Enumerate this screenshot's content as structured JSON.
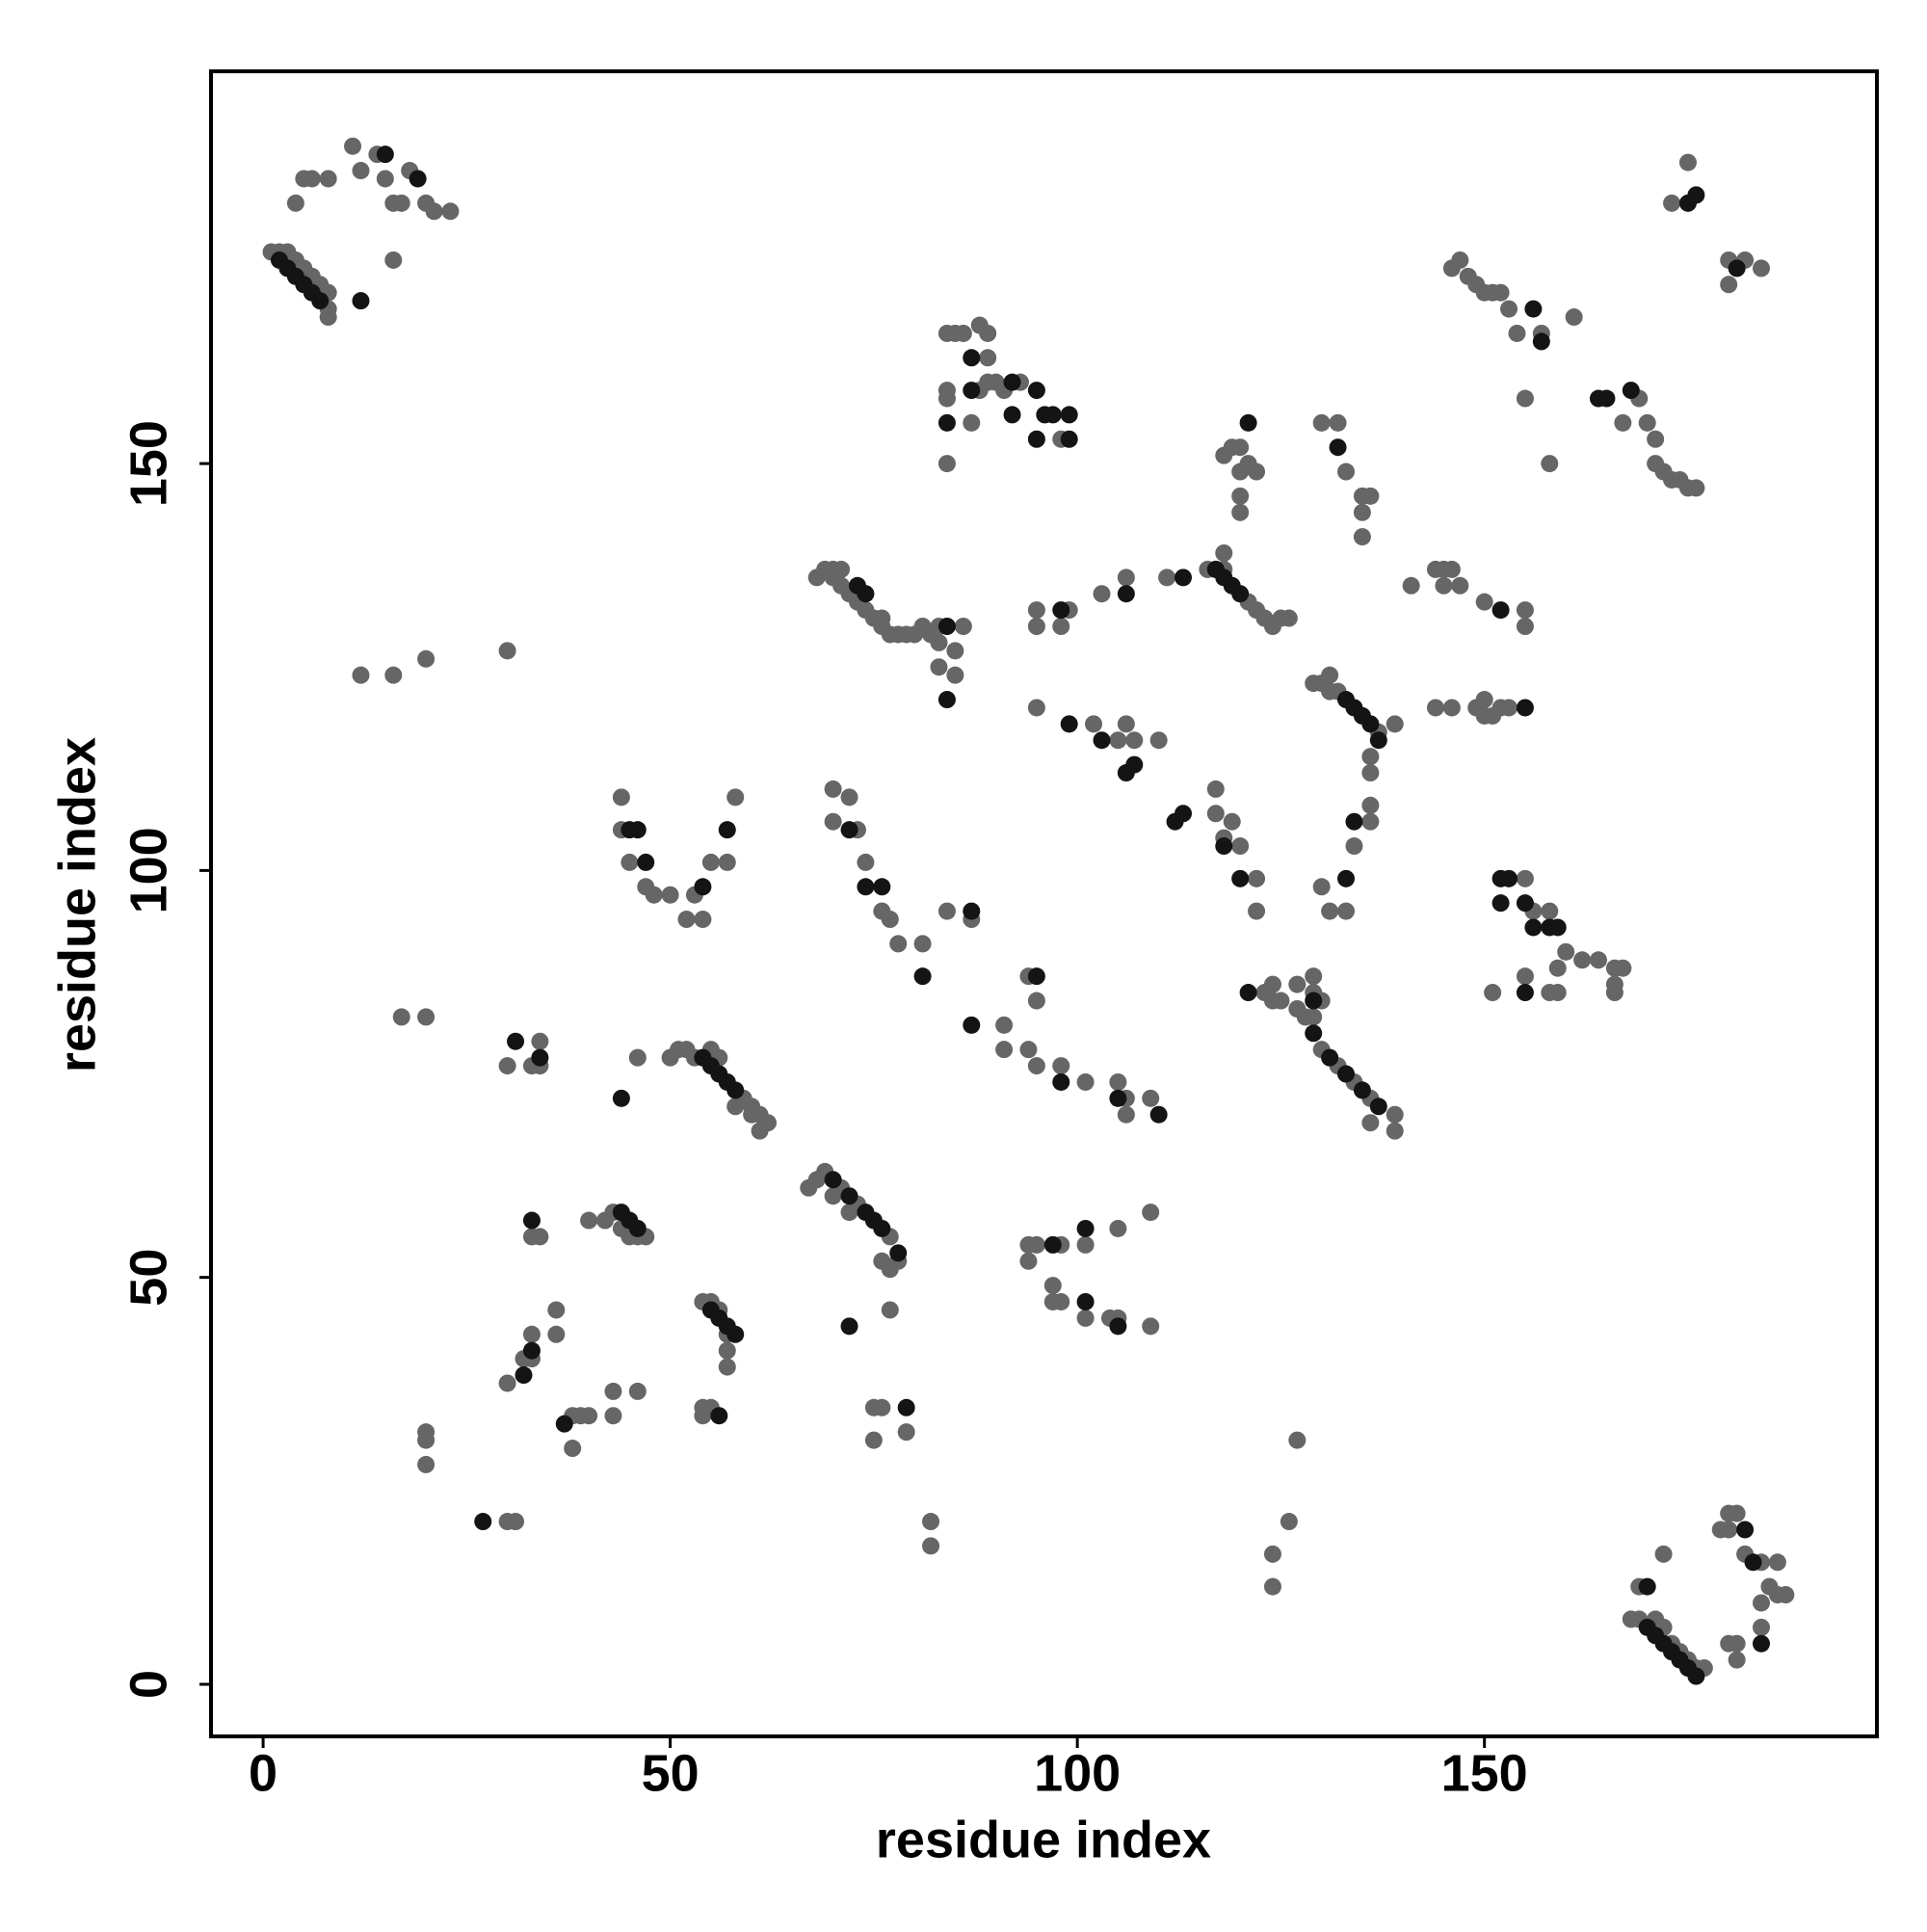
{
  "chart_data": {
    "type": "scatter",
    "xlabel": "residue index",
    "ylabel": "residue index",
    "xlim": [
      -6.4,
      198.2
    ],
    "ylim": [
      -6.4,
      198.2
    ],
    "xticks": [
      0,
      50,
      100,
      150
    ],
    "yticks": [
      0,
      50,
      100,
      150
    ],
    "grid": false,
    "series": [
      {
        "color": "#666666",
        "x": [
          1,
          2,
          3,
          4,
          5,
          6,
          7,
          8,
          8,
          8,
          4,
          5,
          6,
          8,
          11,
          12,
          14,
          15,
          16,
          17,
          18,
          20,
          21,
          23,
          16,
          175,
          173,
          182,
          180,
          184,
          180,
          146,
          147,
          148,
          149,
          150,
          151,
          152,
          153,
          154,
          157,
          161,
          155,
          158,
          169,
          167,
          170,
          171,
          171,
          172,
          173,
          174,
          175,
          176,
          84,
          85,
          86,
          88,
          89,
          89,
          84,
          84,
          88,
          89,
          90,
          91,
          93,
          87,
          98,
          84,
          68,
          69,
          70,
          71,
          70,
          71,
          72,
          73,
          74,
          75,
          76,
          76,
          77,
          78,
          79,
          80,
          81,
          82,
          83,
          85,
          86,
          83,
          85,
          83,
          95,
          95,
          99,
          98,
          103,
          106,
          111,
          116,
          118,
          121,
          122,
          123,
          124,
          125,
          126,
          118,
          118,
          119,
          120,
          121,
          122,
          120,
          120,
          120,
          130,
          132,
          133,
          135,
          136,
          135,
          135,
          141,
          144,
          145,
          145,
          146,
          147,
          150,
          155,
          155,
          129,
          130,
          131,
          131,
          132,
          137,
          139,
          136,
          136,
          136,
          144,
          146,
          149,
          150,
          150,
          152,
          153,
          151,
          95,
          102,
          105,
          106,
          107,
          110,
          117,
          117,
          119,
          118,
          120,
          122,
          122,
          130,
          131,
          133,
          134,
          136,
          155,
          156,
          158,
          160,
          159,
          162,
          164,
          166,
          167,
          166,
          166,
          151,
          155,
          158,
          159,
          44,
          44,
          45,
          47,
          48,
          50,
          52,
          53,
          54,
          55,
          57,
          58,
          70,
          72,
          70,
          73,
          74,
          76,
          77,
          78,
          81,
          84,
          87,
          91,
          91,
          94,
          95,
          94,
          95,
          98,
          101,
          105,
          106,
          106,
          109,
          50,
          51,
          52,
          53,
          59,
          60,
          61,
          62,
          61,
          56,
          55,
          58,
          60,
          46,
          17,
          20,
          30,
          33,
          34,
          34,
          123,
          124,
          125,
          127,
          128,
          129,
          129,
          130,
          132,
          134,
          136,
          136,
          139,
          139,
          127,
          129,
          130,
          124,
          67,
          68,
          69,
          71,
          73,
          77,
          78,
          76,
          77,
          72,
          70,
          40,
          42,
          43,
          47,
          44,
          45,
          46,
          33,
          34,
          54,
          55,
          56,
          57,
          57,
          57,
          54,
          55,
          54,
          77,
          32,
          33,
          33,
          36,
          36,
          30,
          38,
          39,
          40,
          43,
          43,
          46,
          38,
          20,
          20,
          20,
          30,
          31,
          75,
          76,
          75,
          79,
          82,
          82,
          94,
          95,
          94,
          98,
          97,
          97,
          98,
          101,
          105,
          101,
          104,
          105,
          109,
          109,
          127,
          126,
          124,
          124,
          168,
          169,
          173,
          174,
          175,
          176,
          177,
          171,
          172,
          169,
          172,
          179,
          180,
          181,
          180,
          182,
          184,
          185,
          184,
          184,
          180,
          181,
          181,
          186,
          187,
          186,
          12,
          16,
          20,
          30
        ],
        "y": [
          176,
          176,
          176,
          175,
          174,
          173,
          172,
          171,
          169,
          168,
          182,
          185,
          185,
          185,
          189,
          186,
          188,
          185,
          182,
          182,
          186,
          182,
          181,
          181,
          175,
          187,
          182,
          175,
          175,
          174,
          172,
          174,
          175,
          173,
          172,
          171,
          171,
          171,
          169,
          166,
          166,
          168,
          158,
          150,
          158,
          155,
          155,
          153,
          150,
          149,
          148,
          148,
          147,
          147,
          166,
          166,
          166,
          167,
          166,
          163,
          159,
          158,
          159,
          160,
          160,
          159,
          160,
          155,
          153,
          150,
          136,
          137,
          137,
          137,
          136,
          135,
          134,
          133,
          132,
          131,
          131,
          130,
          129,
          129,
          129,
          129,
          130,
          129,
          130,
          127,
          130,
          125,
          124,
          128,
          132,
          130,
          132,
          130,
          134,
          136,
          136,
          137,
          137,
          133,
          132,
          131,
          130,
          131,
          131,
          139,
          151,
          152,
          152,
          150,
          149,
          149,
          146,
          144,
          155,
          155,
          149,
          146,
          146,
          144,
          141,
          135,
          137,
          137,
          135,
          137,
          135,
          133,
          132,
          130,
          123,
          123,
          124,
          122,
          122,
          117,
          118,
          114,
          112,
          108,
          120,
          120,
          120,
          121,
          119,
          120,
          120,
          119,
          120,
          118,
          116,
          118,
          116,
          116,
          110,
          107,
          106,
          104,
          103,
          99,
          95,
          98,
          95,
          95,
          103,
          106,
          99,
          95,
          95,
          90,
          88,
          89,
          89,
          88,
          88,
          86,
          85,
          85,
          87,
          85,
          85,
          109,
          105,
          101,
          98,
          97,
          97,
          94,
          97,
          94,
          101,
          101,
          109,
          110,
          109,
          106,
          105,
          101,
          95,
          94,
          91,
          91,
          95,
          94,
          81,
          78,
          87,
          84,
          78,
          76,
          76,
          74,
          74,
          72,
          70,
          72,
          77,
          78,
          78,
          77,
          72,
          71,
          70,
          69,
          68,
          77,
          78,
          71,
          70,
          77,
          82,
          82,
          76,
          76,
          79,
          76,
          85,
          84,
          84,
          83,
          82,
          85,
          82,
          78,
          76,
          74,
          72,
          69,
          70,
          68,
          86,
          87,
          84,
          86,
          61,
          62,
          63,
          61,
          59,
          55,
          52,
          52,
          51,
          58,
          60,
          57,
          57,
          58,
          55,
          56,
          55,
          55,
          55,
          55,
          47,
          47,
          46,
          43,
          41,
          39,
          34,
          34,
          33,
          46,
          40,
          40,
          43,
          43,
          46,
          37,
          33,
          33,
          33,
          36,
          33,
          36,
          29,
          31,
          30,
          27,
          20,
          20,
          34,
          34,
          30,
          31,
          20,
          17,
          54,
          54,
          52,
          54,
          49,
          47,
          47,
          45,
          56,
          54,
          45,
          45,
          58,
          44,
          30,
          20,
          16,
          12,
          8,
          8,
          5,
          4,
          3,
          2,
          2,
          8,
          7,
          12,
          16,
          19,
          21,
          21,
          19,
          16,
          15,
          12,
          10,
          7,
          5,
          3,
          5,
          11,
          11,
          15,
          124,
          124,
          126,
          127
        ]
      },
      {
        "color": "#141414",
        "x": [
          15,
          19,
          12,
          175,
          176,
          181,
          156,
          157,
          164,
          165,
          168,
          87,
          87,
          92,
          92,
          95,
          96,
          97,
          99,
          84,
          95,
          99,
          73,
          74,
          84,
          84,
          98,
          106,
          113,
          117,
          118,
          119,
          120,
          121,
          132,
          152,
          133,
          134,
          135,
          136,
          137,
          155,
          99,
          103,
          106,
          107,
          112,
          113,
          118,
          120,
          133,
          134,
          152,
          153,
          152,
          155,
          156,
          158,
          159,
          155,
          45,
          46,
          47,
          54,
          57,
          72,
          74,
          76,
          81,
          87,
          87,
          95,
          98,
          105,
          110,
          54,
          55,
          56,
          57,
          58,
          44,
          31,
          34,
          121,
          129,
          129,
          131,
          133,
          135,
          137,
          70,
          72,
          74,
          75,
          76,
          78,
          44,
          45,
          46,
          33,
          55,
          56,
          57,
          58,
          56,
          72,
          32,
          33,
          37,
          27,
          79,
          97,
          101,
          101,
          105,
          170,
          171,
          172,
          173,
          174,
          175,
          176,
          170,
          182,
          183,
          184,
          3,
          4,
          5,
          6,
          7,
          2
        ],
        "y": [
          188,
          185,
          170,
          182,
          183,
          174,
          169,
          165,
          158,
          158,
          159,
          163,
          159,
          160,
          156,
          159,
          156,
          156,
          156,
          155,
          153,
          153,
          135,
          134,
          130,
          121,
          132,
          134,
          136,
          137,
          136,
          135,
          134,
          155,
          152,
          132,
          121,
          120,
          119,
          118,
          116,
          120,
          118,
          116,
          112,
          113,
          106,
          107,
          103,
          99,
          99,
          106,
          99,
          99,
          96,
          96,
          93,
          93,
          93,
          85,
          105,
          105,
          101,
          98,
          105,
          105,
          98,
          98,
          87,
          95,
          81,
          87,
          74,
          72,
          70,
          77,
          76,
          75,
          74,
          73,
          72,
          79,
          77,
          85,
          84,
          80,
          77,
          75,
          73,
          71,
          62,
          60,
          58,
          57,
          56,
          53,
          58,
          57,
          56,
          57,
          46,
          45,
          44,
          43,
          33,
          44,
          38,
          41,
          32,
          20,
          34,
          54,
          47,
          56,
          44,
          7,
          6,
          5,
          4,
          3,
          2,
          1,
          12,
          19,
          15,
          5,
          174,
          173,
          172,
          171,
          170,
          175
        ]
      }
    ]
  }
}
